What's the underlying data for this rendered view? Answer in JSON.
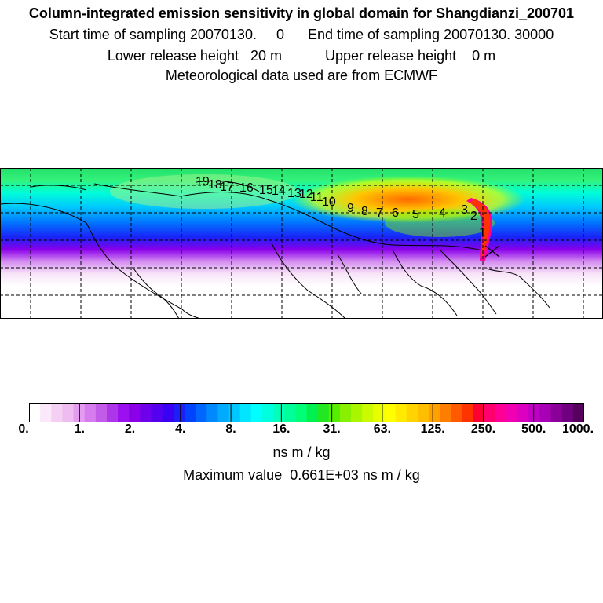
{
  "header": {
    "title": "Column-integrated emission sensitivity in global domain for Shangdianzi_200701",
    "sampling": "Start time of sampling 20070130.     0      End time of sampling 20070130. 30000",
    "release": "Lower release height   20 m           Upper release height    0 m",
    "meteo": "Meteorological data used are from ECMWF"
  },
  "map": {
    "receptor_marker": "x-mark",
    "day_labels": [
      "1",
      "2",
      "3",
      "4",
      "5",
      "6",
      "7",
      "8",
      "9",
      "10",
      "11",
      "12",
      "13",
      "14",
      "15",
      "16",
      "17",
      "18",
      "19"
    ]
  },
  "colorbar": {
    "colors": [
      "#ffffff",
      "#fbe8fb",
      "#f5d0f5",
      "#eebcf1",
      "#e39cf0",
      "#d77cee",
      "#c35be9",
      "#ad37e8",
      "#9b10f0",
      "#8b00e8",
      "#6f00ec",
      "#5400ef",
      "#3a00f3",
      "#1e1ef8",
      "#0044ff",
      "#0066ff",
      "#0088ff",
      "#00aaff",
      "#00c8ff",
      "#00e6ff",
      "#00ffff",
      "#00ffdf",
      "#00ffbb",
      "#00ff99",
      "#00ff77",
      "#00f050",
      "#22e822",
      "#55ee00",
      "#88f000",
      "#aaf500",
      "#ccfa00",
      "#e8ff00",
      "#ffff00",
      "#ffea00",
      "#ffd400",
      "#ffbe00",
      "#ffa000",
      "#ff7e00",
      "#ff5a00",
      "#ff3300",
      "#ff0033",
      "#ff006e",
      "#ff0096",
      "#f000b0",
      "#dc00c0",
      "#c000c4",
      "#a800b4",
      "#8c009a",
      "#700080",
      "#55005c"
    ],
    "tick_labels": [
      "0.",
      "1.",
      "2.",
      "4.",
      "8.",
      "16.",
      "31.",
      "63.",
      "125.",
      "250.",
      "500.",
      "1000."
    ],
    "units": "ns m / kg",
    "max_value_text": "Maximum value  0.661E+03 ns m / kg"
  }
}
